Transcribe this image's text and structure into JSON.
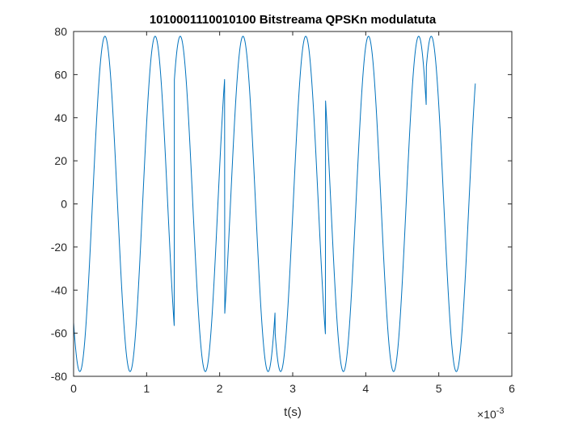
{
  "chart_data": {
    "type": "line",
    "title": "1010001110010100 Bitstreama QPSKn modulatuta",
    "xlabel": "t(s)",
    "ylabel": "",
    "x_exponent_label": "×10",
    "x_exponent_power": "-3",
    "xlim": [
      0,
      0.006
    ],
    "ylim": [
      -80,
      80
    ],
    "xticks": [
      0,
      0.001,
      0.002,
      0.003,
      0.004,
      0.005,
      0.006
    ],
    "xtick_labels": [
      "0",
      "1",
      "2",
      "3",
      "4",
      "5",
      "6"
    ],
    "yticks": [
      -80,
      -60,
      -40,
      -20,
      0,
      20,
      40,
      60,
      80
    ],
    "ytick_labels": [
      "-80",
      "-60",
      "-40",
      "-20",
      "0",
      "20",
      "40",
      "60",
      "80"
    ],
    "grid": false,
    "series": [
      {
        "amplitude": 77.78,
        "carrier_frequency_hz": 1455,
        "symbol_duration_s": 0.00069,
        "t_end": 0.0055,
        "symbols": [
          "10",
          "10",
          "00",
          "11",
          "10",
          "01",
          "01",
          "00"
        ],
        "phase_deg_by_symbol": {
          "00": -45,
          "01": 45,
          "10": 135,
          "11": -135
        },
        "color": "#0072BD"
      }
    ]
  }
}
